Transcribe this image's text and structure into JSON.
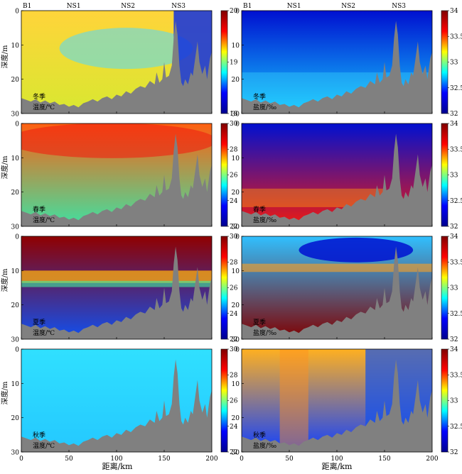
{
  "figure": {
    "xlabel": "距离/km",
    "ylabel": "深度/m",
    "stations": [
      "B1",
      "NS1",
      "NS2",
      "NS3"
    ],
    "colorbars": {
      "temp_winter": {
        "ticks": [
          "18",
          "19",
          "20"
        ]
      },
      "temp_other": {
        "ticks": [
          "22",
          "24",
          "26",
          "28",
          "30"
        ]
      },
      "salinity": {
        "ticks": [
          "32",
          "32.5",
          "33",
          "33.5",
          "34"
        ]
      }
    }
  },
  "chart_data": [
    {
      "type": "heatmap",
      "season": "冬季",
      "variable": "温度/℃",
      "colorbar": "temp_winter",
      "xlim": [
        0,
        200
      ],
      "ylim": [
        30,
        0
      ],
      "xticks": [
        0,
        50,
        100,
        150,
        200
      ],
      "yticks": [
        0,
        10,
        20,
        30
      ],
      "value_range": [
        18,
        20
      ],
      "surface_color": "#ffd43a",
      "bottom_color": "#d8e830",
      "cold_core_color": "#00bfff",
      "east_color": "#1030e0"
    },
    {
      "type": "heatmap",
      "season": "冬季",
      "variable": "盐度/‰",
      "colorbar": "salinity",
      "xlim": [
        0,
        200
      ],
      "ylim": [
        30,
        0
      ],
      "xticks": [
        0,
        50,
        100,
        150,
        200
      ],
      "yticks": [
        0,
        10,
        20,
        30
      ],
      "value_range": [
        32,
        34
      ],
      "surface_color": "#0010d0",
      "bottom_color": "#14c8ff"
    },
    {
      "type": "heatmap",
      "season": "春季",
      "variable": "温度/℃",
      "colorbar": "temp_other",
      "xlim": [
        0,
        200
      ],
      "ylim": [
        30,
        0
      ],
      "xticks": [
        0,
        50,
        100,
        150,
        200
      ],
      "yticks": [
        0,
        10,
        20,
        30
      ],
      "value_range": [
        22,
        30
      ],
      "surface_color": "#ff6010",
      "bottom_color": "#40e0a0"
    },
    {
      "type": "heatmap",
      "season": "春季",
      "variable": "盐度/‰",
      "colorbar": "salinity",
      "xlim": [
        0,
        200
      ],
      "ylim": [
        30,
        0
      ],
      "xticks": [
        0,
        50,
        100,
        150,
        200
      ],
      "yticks": [
        0,
        10,
        20,
        30
      ],
      "value_range": [
        32,
        34
      ],
      "surface_color": "#0010d0",
      "bottom_color": "#f01a10"
    },
    {
      "type": "heatmap",
      "season": "夏季",
      "variable": "温度/℃",
      "colorbar": "temp_other",
      "xlim": [
        0,
        200
      ],
      "ylim": [
        30,
        0
      ],
      "xticks": [
        0,
        50,
        100,
        150,
        200
      ],
      "yticks": [
        0,
        10,
        20,
        30
      ],
      "value_range": [
        22,
        30
      ],
      "surface_color": "#900000",
      "bottom_color": "#1050f0"
    },
    {
      "type": "heatmap",
      "season": "夏季",
      "variable": "盐度/‰",
      "colorbar": "salinity",
      "xlim": [
        0,
        200
      ],
      "ylim": [
        30,
        0
      ],
      "xticks": [
        0,
        50,
        100,
        150,
        200
      ],
      "yticks": [
        0,
        10,
        20,
        30
      ],
      "value_range": [
        32,
        34
      ],
      "surface_color": "#30c0ff",
      "bottom_color": "#800000"
    },
    {
      "type": "heatmap",
      "season": "秋季",
      "variable": "温度/℃",
      "colorbar": "temp_other",
      "xlim": [
        0,
        200
      ],
      "ylim": [
        30,
        0
      ],
      "xticks": [
        0,
        50,
        100,
        150,
        200
      ],
      "yticks": [
        0,
        10,
        20,
        30
      ],
      "value_range": [
        22,
        30
      ],
      "surface_color": "#30e0ff",
      "bottom_color": "#24c8ff"
    },
    {
      "type": "heatmap",
      "season": "秋季",
      "variable": "盐度/‰",
      "colorbar": "salinity",
      "xlim": [
        0,
        200
      ],
      "ylim": [
        30,
        0
      ],
      "xticks": [
        0,
        50,
        100,
        150,
        200
      ],
      "yticks": [
        0,
        10,
        20,
        30
      ],
      "value_range": [
        32,
        34
      ],
      "surface_color": "#ffb020",
      "bottom_color": "#1040ff"
    }
  ],
  "colormap_jet": [
    "#00008f",
    "#0000ff",
    "#00ffff",
    "#ffff00",
    "#ff0000",
    "#800000"
  ],
  "terrain_color": "#808080",
  "seafloor_depth_m": [
    [
      0,
      25.5
    ],
    [
      5,
      26
    ],
    [
      10,
      26.5
    ],
    [
      15,
      25.8
    ],
    [
      20,
      26.8
    ],
    [
      25,
      26.2
    ],
    [
      30,
      27
    ],
    [
      35,
      26.5
    ],
    [
      40,
      27.5
    ],
    [
      45,
      27.2
    ],
    [
      50,
      28
    ],
    [
      55,
      27.5
    ],
    [
      60,
      28.2
    ],
    [
      65,
      27
    ],
    [
      70,
      26.5
    ],
    [
      75,
      25.8
    ],
    [
      80,
      26.5
    ],
    [
      85,
      25.5
    ],
    [
      90,
      25
    ],
    [
      95,
      25.8
    ],
    [
      100,
      24.5
    ],
    [
      105,
      25
    ],
    [
      110,
      23.5
    ],
    [
      115,
      24.2
    ],
    [
      120,
      22.8
    ],
    [
      125,
      22
    ],
    [
      130,
      22.5
    ],
    [
      135,
      20.5
    ],
    [
      140,
      21.5
    ],
    [
      142,
      18
    ],
    [
      145,
      21
    ],
    [
      148,
      20
    ],
    [
      150,
      15
    ],
    [
      152,
      19.5
    ],
    [
      155,
      19
    ],
    [
      158,
      16
    ],
    [
      160,
      8
    ],
    [
      162,
      3
    ],
    [
      164,
      7
    ],
    [
      166,
      16
    ],
    [
      168,
      21
    ],
    [
      170,
      22
    ],
    [
      172,
      20
    ],
    [
      175,
      21.5
    ],
    [
      178,
      18
    ],
    [
      180,
      19
    ],
    [
      183,
      13
    ],
    [
      185,
      9
    ],
    [
      187,
      15
    ],
    [
      190,
      18.5
    ],
    [
      193,
      16
    ],
    [
      195,
      20
    ],
    [
      198,
      14
    ],
    [
      200,
      12
    ]
  ]
}
